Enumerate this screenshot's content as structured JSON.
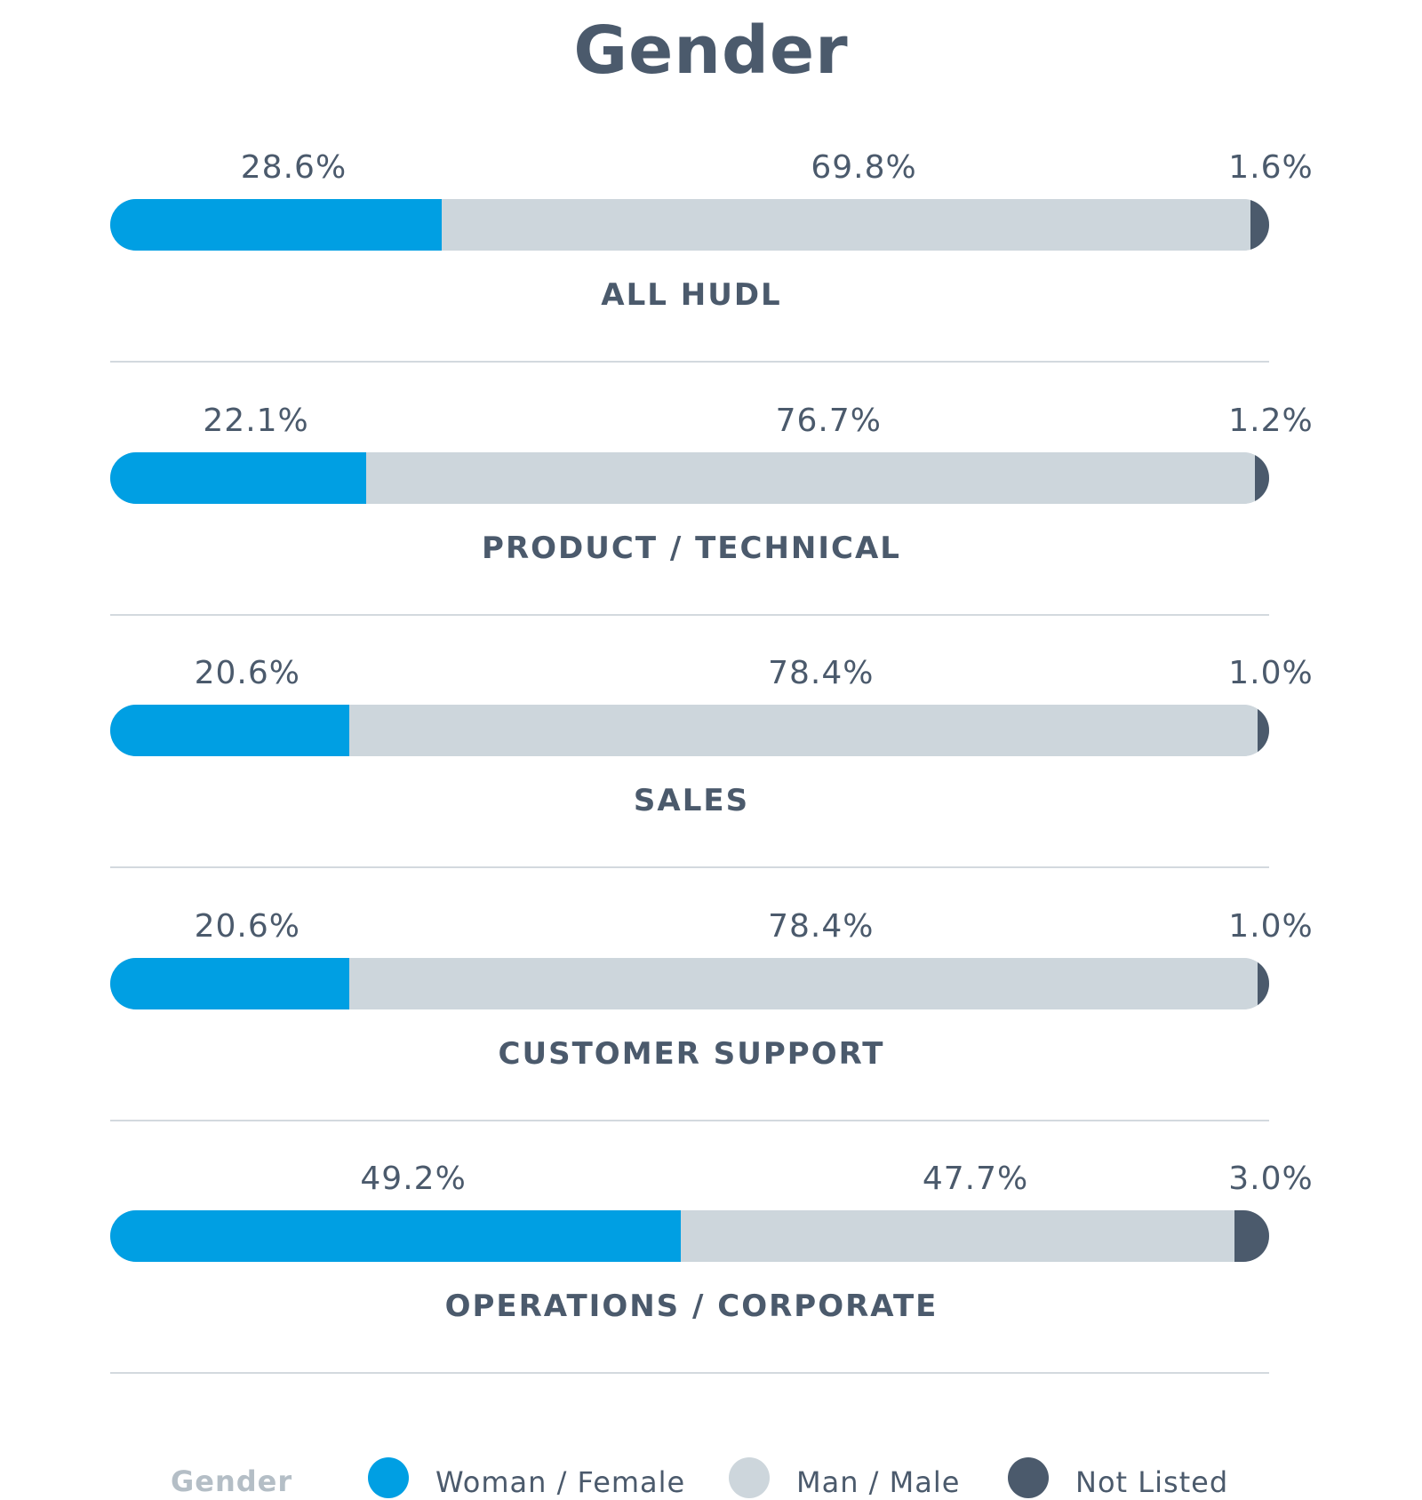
{
  "chart_data": {
    "type": "bar",
    "stacked": true,
    "orientation": "horizontal",
    "title": "Gender",
    "categories": [
      "ALL HUDL",
      "PRODUCT / TECHNICAL",
      "SALES",
      "CUSTOMER SUPPORT",
      "OPERATIONS / CORPORATE"
    ],
    "series": [
      {
        "name": "Woman / Female",
        "values": [
          28.6,
          22.1,
          20.6,
          20.6,
          49.2
        ]
      },
      {
        "name": "Man / Male",
        "values": [
          69.8,
          76.7,
          78.4,
          78.4,
          47.7
        ]
      },
      {
        "name": "Not Listed",
        "values": [
          1.6,
          1.2,
          1.0,
          1.0,
          3.0
        ]
      }
    ],
    "value_labels": [
      [
        "28.6%",
        "69.8%",
        "1.6%"
      ],
      [
        "22.1%",
        "76.7%",
        "1.2%"
      ],
      [
        "20.6%",
        "78.4%",
        "1.0%"
      ],
      [
        "20.6%",
        "78.4%",
        "1.0%"
      ],
      [
        "49.2%",
        "47.7%",
        "3.0%"
      ]
    ],
    "xlim": [
      0,
      100
    ],
    "legend": {
      "title": "Gender",
      "position": "bottom"
    },
    "colors": {
      "female": "#009fe3",
      "male": "#cdd6dc",
      "notlisted": "#4b5a6c"
    }
  }
}
